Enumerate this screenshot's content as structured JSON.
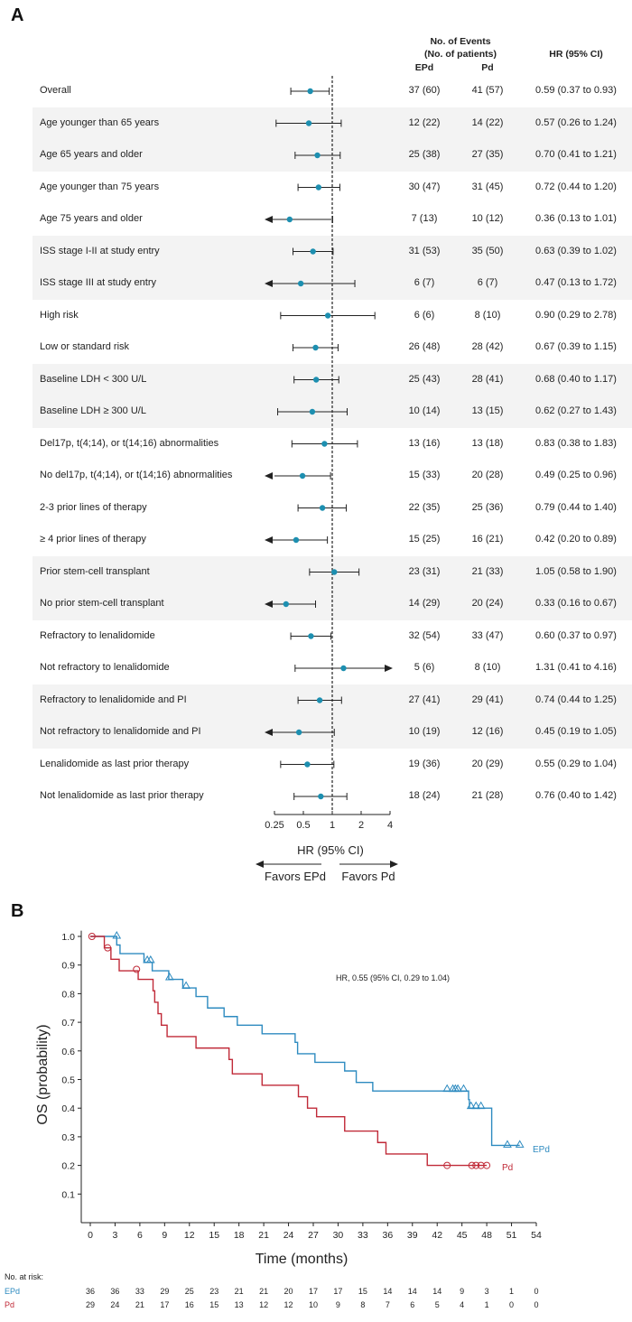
{
  "chart_data": [
    {
      "type": "forest",
      "panel": "A",
      "headers": {
        "events": "No. of Events",
        "patients": "(No. of patients)",
        "col_epd": "EPd",
        "col_pd": "Pd",
        "hr_col": "HR (95% CI)"
      },
      "xaxis": {
        "scale": "log",
        "ticks": [
          0.25,
          0.5,
          1,
          2,
          4
        ],
        "tick_labels": [
          "0.25",
          "0.5",
          "1",
          "2",
          "4"
        ],
        "label": "HR (95% CI)",
        "favors_left": "Favors EPd",
        "favors_right": "Favors Pd",
        "reference": 1
      },
      "rows": [
        {
          "label": "Overall",
          "epd": "37 (60)",
          "pd": "41 (57)",
          "hr_text": "0.59 (0.37 to 0.93)",
          "hr": 0.59,
          "lo": 0.37,
          "hi": 0.93,
          "arrow_lo": false,
          "arrow_hi": false,
          "shaded": false
        },
        {
          "label": "Age younger than 65 years",
          "epd": "12 (22)",
          "pd": "14 (22)",
          "hr_text": "0.57 (0.26 to 1.24)",
          "hr": 0.57,
          "lo": 0.26,
          "hi": 1.24,
          "arrow_lo": false,
          "arrow_hi": false,
          "shaded": true
        },
        {
          "label": "Age 65 years and older",
          "epd": "25 (38)",
          "pd": "27 (35)",
          "hr_text": "0.70 (0.41 to 1.21)",
          "hr": 0.7,
          "lo": 0.41,
          "hi": 1.21,
          "arrow_lo": false,
          "arrow_hi": false,
          "shaded": true
        },
        {
          "label": "Age younger than 75 years",
          "epd": "30 (47)",
          "pd": "31 (45)",
          "hr_text": "0.72 (0.44 to 1.20)",
          "hr": 0.72,
          "lo": 0.44,
          "hi": 1.2,
          "arrow_lo": false,
          "arrow_hi": false,
          "shaded": false
        },
        {
          "label": "Age 75 years and older",
          "epd": "7 (13)",
          "pd": "10 (12)",
          "hr_text": "0.36 (0.13 to 1.01)",
          "hr": 0.36,
          "lo": 0.13,
          "hi": 1.01,
          "arrow_lo": true,
          "arrow_hi": false,
          "shaded": false
        },
        {
          "label": "ISS stage I-II at study entry",
          "epd": "31 (53)",
          "pd": "35 (50)",
          "hr_text": "0.63 (0.39 to 1.02)",
          "hr": 0.63,
          "lo": 0.39,
          "hi": 1.02,
          "arrow_lo": false,
          "arrow_hi": false,
          "shaded": true
        },
        {
          "label": "ISS stage III at study entry",
          "epd": "6 (7)",
          "pd": "6 (7)",
          "hr_text": "0.47 (0.13 to 1.72)",
          "hr": 0.47,
          "lo": 0.13,
          "hi": 1.72,
          "arrow_lo": true,
          "arrow_hi": false,
          "shaded": true
        },
        {
          "label": "High risk",
          "epd": "6 (6)",
          "pd": "8 (10)",
          "hr_text": "0.90 (0.29 to 2.78)",
          "hr": 0.9,
          "lo": 0.29,
          "hi": 2.78,
          "arrow_lo": false,
          "arrow_hi": false,
          "shaded": false
        },
        {
          "label": "Low or standard risk",
          "epd": "26 (48)",
          "pd": "28 (42)",
          "hr_text": "0.67 (0.39 to 1.15)",
          "hr": 0.67,
          "lo": 0.39,
          "hi": 1.15,
          "arrow_lo": false,
          "arrow_hi": false,
          "shaded": false
        },
        {
          "label": "Baseline LDH < 300 U/L",
          "epd": "25 (43)",
          "pd": "28 (41)",
          "hr_text": "0.68 (0.40 to 1.17)",
          "hr": 0.68,
          "lo": 0.4,
          "hi": 1.17,
          "arrow_lo": false,
          "arrow_hi": false,
          "shaded": true
        },
        {
          "label": "Baseline LDH ≥ 300 U/L",
          "epd": "10 (14)",
          "pd": "13 (15)",
          "hr_text": "0.62 (0.27 to 1.43)",
          "hr": 0.62,
          "lo": 0.27,
          "hi": 1.43,
          "arrow_lo": false,
          "arrow_hi": false,
          "shaded": true
        },
        {
          "label": "Del17p, t(4;14), or t(14;16) abnormalities",
          "epd": "13 (16)",
          "pd": "13 (18)",
          "hr_text": "0.83 (0.38 to 1.83)",
          "hr": 0.83,
          "lo": 0.38,
          "hi": 1.83,
          "arrow_lo": false,
          "arrow_hi": false,
          "shaded": false
        },
        {
          "label": "No del17p, t(4;14), or t(14;16) abnormalities",
          "epd": "15 (33)",
          "pd": "20 (28)",
          "hr_text": "0.49 (0.25 to 0.96)",
          "hr": 0.49,
          "lo": 0.25,
          "hi": 0.96,
          "arrow_lo": true,
          "arrow_hi": false,
          "shaded": false
        },
        {
          "label": "2-3 prior lines of therapy",
          "epd": "22 (35)",
          "pd": "25 (36)",
          "hr_text": "0.79 (0.44 to 1.40)",
          "hr": 0.79,
          "lo": 0.44,
          "hi": 1.4,
          "arrow_lo": false,
          "arrow_hi": false,
          "shaded": false
        },
        {
          "label": "≥ 4 prior lines of therapy",
          "epd": "15 (25)",
          "pd": "16 (21)",
          "hr_text": "0.42 (0.20 to 0.89)",
          "hr": 0.42,
          "lo": 0.2,
          "hi": 0.89,
          "arrow_lo": true,
          "arrow_hi": false,
          "shaded": false
        },
        {
          "label": "Prior stem-cell transplant",
          "epd": "23 (31)",
          "pd": "21 (33)",
          "hr_text": "1.05 (0.58 to 1.90)",
          "hr": 1.05,
          "lo": 0.58,
          "hi": 1.9,
          "arrow_lo": false,
          "arrow_hi": false,
          "shaded": true
        },
        {
          "label": "No prior stem-cell transplant",
          "epd": "14 (29)",
          "pd": "20 (24)",
          "hr_text": "0.33 (0.16 to 0.67)",
          "hr": 0.33,
          "lo": 0.16,
          "hi": 0.67,
          "arrow_lo": true,
          "arrow_hi": false,
          "shaded": true
        },
        {
          "label": "Refractory to lenalidomide",
          "epd": "32 (54)",
          "pd": "33 (47)",
          "hr_text": "0.60 (0.37 to 0.97)",
          "hr": 0.6,
          "lo": 0.37,
          "hi": 0.97,
          "arrow_lo": false,
          "arrow_hi": false,
          "shaded": false
        },
        {
          "label": "Not refractory to lenalidomide",
          "epd": "5 (6)",
          "pd": "8 (10)",
          "hr_text": "1.31 (0.41 to 4.16)",
          "hr": 1.31,
          "lo": 0.41,
          "hi": 4.16,
          "arrow_lo": false,
          "arrow_hi": true,
          "shaded": false
        },
        {
          "label": "Refractory to lenalidomide and PI",
          "epd": "27 (41)",
          "pd": "29 (41)",
          "hr_text": "0.74 (0.44 to 1.25)",
          "hr": 0.74,
          "lo": 0.44,
          "hi": 1.25,
          "arrow_lo": false,
          "arrow_hi": false,
          "shaded": true
        },
        {
          "label": "Not refractory to lenalidomide and PI",
          "epd": "10 (19)",
          "pd": "12 (16)",
          "hr_text": "0.45 (0.19 to 1.05)",
          "hr": 0.45,
          "lo": 0.19,
          "hi": 1.05,
          "arrow_lo": true,
          "arrow_hi": false,
          "shaded": true
        },
        {
          "label": "Lenalidomide as last prior therapy",
          "epd": "19 (36)",
          "pd": "20 (29)",
          "hr_text": "0.55 (0.29 to 1.04)",
          "hr": 0.55,
          "lo": 0.29,
          "hi": 1.04,
          "arrow_lo": false,
          "arrow_hi": false,
          "shaded": false
        },
        {
          "label": "Not lenalidomide as last prior therapy",
          "epd": "18 (24)",
          "pd": "21 (28)",
          "hr_text": "0.76 (0.40 to 1.42)",
          "hr": 0.76,
          "lo": 0.4,
          "hi": 1.42,
          "arrow_lo": false,
          "arrow_hi": false,
          "shaded": false
        }
      ]
    },
    {
      "type": "line",
      "subtype": "kaplan-meier",
      "panel": "B",
      "title": "",
      "annotation": "HR, 0.55 (95% CI, 0.29 to 1.04)",
      "xlabel": "Time (months)",
      "ylabel": "OS (probability)",
      "xlim": [
        0,
        54
      ],
      "ylim": [
        0,
        1.0
      ],
      "xticks": [
        0,
        3,
        6,
        9,
        12,
        15,
        18,
        21,
        24,
        27,
        30,
        33,
        36,
        39,
        42,
        45,
        48,
        51,
        54
      ],
      "yticks": [
        0.1,
        0.2,
        0.3,
        0.4,
        0.5,
        0.6,
        0.7,
        0.8,
        0.9,
        1.0
      ],
      "ytick_labels": [
        "0.1",
        "0.2",
        "0.3",
        "0.4",
        "0.5",
        "0.6",
        "0.7",
        "0.8",
        "0.9",
        "1.0"
      ],
      "series": [
        {
          "name": "EPd",
          "color": "#2e8bc0",
          "marker": "triangle",
          "steps": [
            [
              0,
              1.0
            ],
            [
              3.2,
              0.97
            ],
            [
              3.6,
              0.94
            ],
            [
              6.5,
              0.91
            ],
            [
              7.5,
              0.88
            ],
            [
              9.5,
              0.85
            ],
            [
              11.2,
              0.82
            ],
            [
              12.8,
              0.79
            ],
            [
              14.2,
              0.75
            ],
            [
              16.2,
              0.72
            ],
            [
              17.8,
              0.69
            ],
            [
              20.8,
              0.66
            ],
            [
              24.8,
              0.63
            ],
            [
              25.1,
              0.59
            ],
            [
              27.2,
              0.56
            ],
            [
              30.8,
              0.53
            ],
            [
              32.2,
              0.49
            ],
            [
              34.2,
              0.46
            ],
            [
              45.8,
              0.43
            ],
            [
              45.9,
              0.4
            ],
            [
              48.5,
              0.4
            ],
            [
              48.6,
              0.27
            ],
            [
              52,
              0.27
            ]
          ],
          "censors": [
            [
              3.2,
              1.0
            ],
            [
              6.9,
              0.915
            ],
            [
              7.3,
              0.915
            ],
            [
              9.6,
              0.855
            ],
            [
              11.6,
              0.825
            ],
            [
              43.2,
              0.465
            ],
            [
              43.9,
              0.465
            ],
            [
              44.2,
              0.465
            ],
            [
              44.5,
              0.465
            ],
            [
              45.2,
              0.465
            ],
            [
              46.1,
              0.405
            ],
            [
              46.7,
              0.405
            ],
            [
              47.3,
              0.405
            ],
            [
              50.5,
              0.27
            ],
            [
              52,
              0.27
            ]
          ],
          "risk": [
            "36",
            "36",
            "33",
            "29",
            "25",
            "23",
            "21",
            "21",
            "20",
            "17",
            "17",
            "15",
            "14",
            "14",
            "14",
            "9",
            "3",
            "1",
            "0"
          ]
        },
        {
          "name": "Pd",
          "color": "#c02a38",
          "marker": "circle",
          "steps": [
            [
              0,
              1.0
            ],
            [
              1.7,
              0.96
            ],
            [
              2.5,
              0.92
            ],
            [
              3.5,
              0.88
            ],
            [
              5.8,
              0.85
            ],
            [
              7.6,
              0.81
            ],
            [
              7.8,
              0.77
            ],
            [
              8.2,
              0.73
            ],
            [
              8.6,
              0.69
            ],
            [
              9.3,
              0.65
            ],
            [
              12.8,
              0.61
            ],
            [
              16.8,
              0.57
            ],
            [
              17.2,
              0.52
            ],
            [
              20.8,
              0.48
            ],
            [
              25.2,
              0.44
            ],
            [
              26.3,
              0.4
            ],
            [
              27.4,
              0.37
            ],
            [
              30.8,
              0.32
            ],
            [
              34.8,
              0.28
            ],
            [
              35.8,
              0.24
            ],
            [
              40.8,
              0.2
            ],
            [
              48,
              0.2
            ]
          ],
          "censors": [
            [
              0.2,
              1.0
            ],
            [
              2.1,
              0.96
            ],
            [
              5.6,
              0.885
            ],
            [
              43.2,
              0.2
            ],
            [
              46.2,
              0.2
            ],
            [
              46.7,
              0.2
            ],
            [
              47.3,
              0.2
            ],
            [
              48,
              0.2
            ]
          ],
          "risk": [
            "29",
            "24",
            "21",
            "17",
            "16",
            "15",
            "13",
            "12",
            "12",
            "10",
            "9",
            "8",
            "7",
            "6",
            "5",
            "4",
            "1",
            "0",
            "0"
          ]
        }
      ],
      "risk_table_label": "No. at risk:"
    }
  ]
}
